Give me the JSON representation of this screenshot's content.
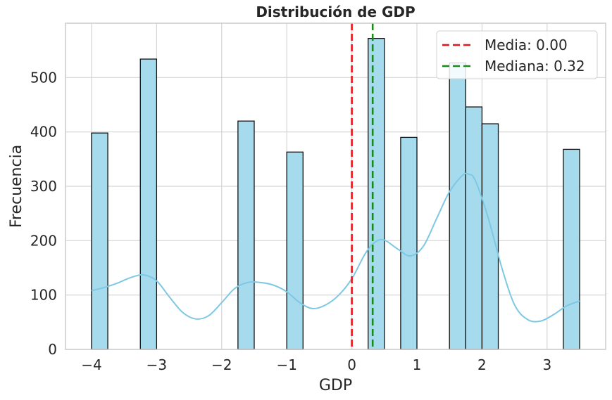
{
  "chart_data": {
    "type": "histogram",
    "title": "Distribución de GDP",
    "xlabel": "GDP",
    "ylabel": "Frecuencia",
    "xlim": [
      -4.4,
      3.9
    ],
    "ylim": [
      0,
      600
    ],
    "xticks": [
      -4,
      -3,
      -2,
      -1,
      0,
      1,
      2,
      3
    ],
    "xtick_labels": [
      "−4",
      "−3",
      "−2",
      "−1",
      "0",
      "1",
      "2",
      "3"
    ],
    "yticks": [
      0,
      100,
      200,
      300,
      400,
      500
    ],
    "ytick_labels": [
      "0",
      "100",
      "200",
      "300",
      "400",
      "500"
    ],
    "grid": true,
    "bar_color": "#a6dbee",
    "bar_edge_color": "#111111",
    "kde_color": "#7ec8e3",
    "bins": [
      {
        "x0": -4.0,
        "x1": -3.75,
        "count": 398
      },
      {
        "x0": -3.25,
        "x1": -3.0,
        "count": 534
      },
      {
        "x0": -1.75,
        "x1": -1.5,
        "count": 420
      },
      {
        "x0": -1.0,
        "x1": -0.75,
        "count": 363
      },
      {
        "x0": 0.25,
        "x1": 0.5,
        "count": 572
      },
      {
        "x0": 0.75,
        "x1": 1.0,
        "count": 390
      },
      {
        "x0": 1.5,
        "x1": 1.75,
        "count": 527
      },
      {
        "x0": 1.75,
        "x1": 2.0,
        "count": 446
      },
      {
        "x0": 2.0,
        "x1": 2.25,
        "count": 415
      },
      {
        "x0": 3.25,
        "x1": 3.5,
        "count": 368
      }
    ],
    "kde": {
      "x": [
        -4.0,
        -3.8,
        -3.6,
        -3.4,
        -3.2,
        -3.0,
        -2.8,
        -2.6,
        -2.4,
        -2.2,
        -2.0,
        -1.8,
        -1.6,
        -1.4,
        -1.2,
        -1.0,
        -0.8,
        -0.6,
        -0.4,
        -0.2,
        0.0,
        0.2,
        0.35,
        0.5,
        0.7,
        0.9,
        1.1,
        1.3,
        1.5,
        1.7,
        1.8,
        1.9,
        2.1,
        2.3,
        2.5,
        2.7,
        2.9,
        3.1,
        3.3,
        3.5
      ],
      "y": [
        108,
        114,
        122,
        132,
        137,
        126,
        96,
        68,
        56,
        62,
        86,
        112,
        123,
        123,
        118,
        106,
        86,
        75,
        82,
        100,
        130,
        175,
        197,
        201,
        185,
        172,
        190,
        240,
        290,
        320,
        322,
        310,
        240,
        152,
        82,
        55,
        52,
        64,
        80,
        89
      ]
    },
    "lines": [
      {
        "name": "Media: 0.00",
        "value": 0.0,
        "color": "#e8161b",
        "style": "dashed"
      },
      {
        "name": "Mediana: 0.32",
        "value": 0.32,
        "color": "#1a8a1a",
        "style": "dashed"
      }
    ],
    "legend_position": "top-right"
  }
}
